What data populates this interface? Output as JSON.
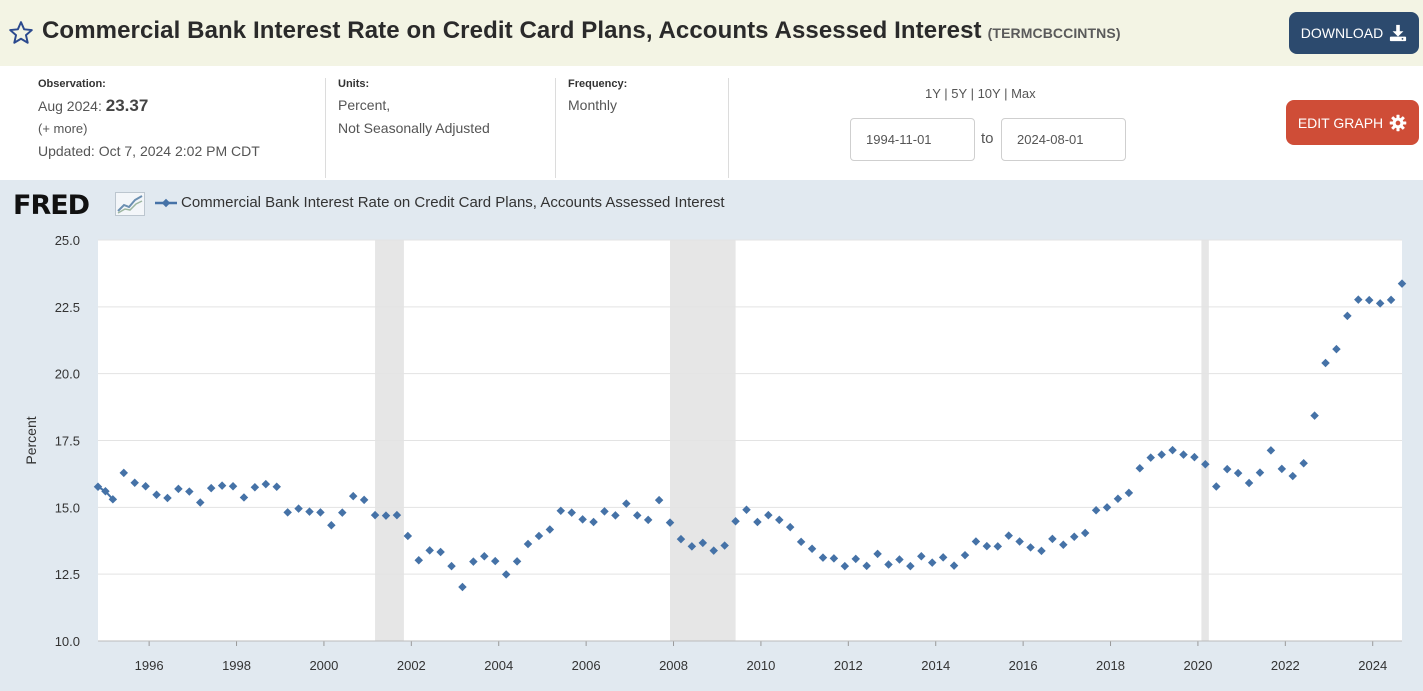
{
  "header": {
    "title": "Commercial Bank Interest Rate on Credit Card Plans, Accounts Assessed Interest",
    "series_id": "(TERMCBCCINTNS)",
    "download_label": "DOWNLOAD"
  },
  "meta": {
    "observation_label": "Observation:",
    "observation_date": "Aug 2024:",
    "observation_value": "23.37",
    "more_link": "(+ more)",
    "updated_label": "Updated:",
    "updated_value": "Oct 7, 2024 2:02 PM CDT",
    "units_label": "Units:",
    "units_line1": "Percent,",
    "units_line2": "Not Seasonally Adjusted",
    "frequency_label": "Frequency:",
    "frequency_value": "Monthly"
  },
  "range": {
    "links": [
      "1Y",
      "5Y",
      "10Y",
      "Max"
    ],
    "separator": " | ",
    "start_date": "1994-11-01",
    "to_label": "to",
    "end_date": "2024-08-01"
  },
  "edit_label": "EDIT GRAPH",
  "colors": {
    "accent_series": "#4572a7",
    "recession_shade": "#e6e6e6",
    "download_bg": "#2c4a6e",
    "edit_bg": "#cf4d37",
    "title_bar_bg": "#f3f4e4",
    "chart_bg": "#e1e9f0"
  },
  "logo_text": "FRED",
  "chart_data": {
    "type": "scatter",
    "title": "Commercial Bank Interest Rate on Credit Card Plans, Accounts Assessed Interest",
    "ylabel": "Percent",
    "xlabel": "",
    "ylim": [
      10.0,
      25.0
    ],
    "xlim": [
      1994.83,
      2024.67
    ],
    "yticks": [
      "10.0",
      "12.5",
      "15.0",
      "17.5",
      "20.0",
      "22.5",
      "25.0"
    ],
    "xticks": [
      "1996",
      "1998",
      "2000",
      "2002",
      "2004",
      "2006",
      "2008",
      "2010",
      "2012",
      "2014",
      "2016",
      "2018",
      "2020",
      "2022",
      "2024"
    ],
    "grid": true,
    "legend_position": "top-left",
    "recessions": [
      [
        2001.17,
        2001.83
      ],
      [
        2007.92,
        2009.42
      ],
      [
        2020.08,
        2020.25
      ]
    ],
    "series": [
      {
        "name": "Commercial Bank Interest Rate on Credit Card Plans, Accounts Assessed Interest",
        "points": [
          [
            1994.83,
            15.77
          ],
          [
            1995.0,
            15.6
          ],
          [
            1995.17,
            15.3
          ],
          [
            1995.42,
            16.29
          ],
          [
            1995.67,
            15.92
          ],
          [
            1995.92,
            15.79
          ],
          [
            1996.17,
            15.47
          ],
          [
            1996.42,
            15.35
          ],
          [
            1996.67,
            15.69
          ],
          [
            1996.92,
            15.59
          ],
          [
            1997.17,
            15.18
          ],
          [
            1997.42,
            15.72
          ],
          [
            1997.67,
            15.81
          ],
          [
            1997.92,
            15.79
          ],
          [
            1998.17,
            15.37
          ],
          [
            1998.42,
            15.75
          ],
          [
            1998.67,
            15.87
          ],
          [
            1998.92,
            15.77
          ],
          [
            1999.17,
            14.81
          ],
          [
            1999.42,
            14.95
          ],
          [
            1999.67,
            14.84
          ],
          [
            1999.92,
            14.81
          ],
          [
            2000.17,
            14.33
          ],
          [
            2000.42,
            14.8
          ],
          [
            2000.67,
            15.42
          ],
          [
            2000.92,
            15.28
          ],
          [
            2001.17,
            14.71
          ],
          [
            2001.42,
            14.69
          ],
          [
            2001.67,
            14.71
          ],
          [
            2001.92,
            13.93
          ],
          [
            2002.17,
            13.02
          ],
          [
            2002.42,
            13.39
          ],
          [
            2002.67,
            13.33
          ],
          [
            2002.92,
            12.8
          ],
          [
            2003.17,
            12.02
          ],
          [
            2003.42,
            12.97
          ],
          [
            2003.67,
            13.17
          ],
          [
            2003.92,
            12.99
          ],
          [
            2004.17,
            12.49
          ],
          [
            2004.42,
            12.98
          ],
          [
            2004.67,
            13.63
          ],
          [
            2004.92,
            13.93
          ],
          [
            2005.17,
            14.17
          ],
          [
            2005.42,
            14.87
          ],
          [
            2005.67,
            14.8
          ],
          [
            2005.92,
            14.55
          ],
          [
            2006.17,
            14.45
          ],
          [
            2006.42,
            14.85
          ],
          [
            2006.67,
            14.7
          ],
          [
            2006.92,
            15.14
          ],
          [
            2007.17,
            14.7
          ],
          [
            2007.42,
            14.53
          ],
          [
            2007.67,
            15.27
          ],
          [
            2007.92,
            14.43
          ],
          [
            2008.17,
            13.81
          ],
          [
            2008.42,
            13.54
          ],
          [
            2008.67,
            13.67
          ],
          [
            2008.92,
            13.38
          ],
          [
            2009.17,
            13.57
          ],
          [
            2009.42,
            14.48
          ],
          [
            2009.67,
            14.91
          ],
          [
            2009.92,
            14.45
          ],
          [
            2010.17,
            14.71
          ],
          [
            2010.42,
            14.53
          ],
          [
            2010.67,
            14.26
          ],
          [
            2010.92,
            13.71
          ],
          [
            2011.17,
            13.45
          ],
          [
            2011.42,
            13.12
          ],
          [
            2011.67,
            13.09
          ],
          [
            2011.92,
            12.8
          ],
          [
            2012.17,
            13.07
          ],
          [
            2012.42,
            12.81
          ],
          [
            2012.67,
            13.26
          ],
          [
            2012.92,
            12.86
          ],
          [
            2013.17,
            13.05
          ],
          [
            2013.42,
            12.8
          ],
          [
            2013.67,
            13.17
          ],
          [
            2013.92,
            12.93
          ],
          [
            2014.17,
            13.13
          ],
          [
            2014.42,
            12.82
          ],
          [
            2014.67,
            13.21
          ],
          [
            2014.92,
            13.72
          ],
          [
            2015.17,
            13.55
          ],
          [
            2015.42,
            13.54
          ],
          [
            2015.67,
            13.94
          ],
          [
            2015.92,
            13.72
          ],
          [
            2016.17,
            13.5
          ],
          [
            2016.42,
            13.37
          ],
          [
            2016.67,
            13.82
          ],
          [
            2016.92,
            13.6
          ],
          [
            2017.17,
            13.9
          ],
          [
            2017.42,
            14.04
          ],
          [
            2017.67,
            14.89
          ],
          [
            2017.92,
            15.0
          ],
          [
            2018.17,
            15.32
          ],
          [
            2018.42,
            15.54
          ],
          [
            2018.67,
            16.46
          ],
          [
            2018.92,
            16.86
          ],
          [
            2019.17,
            16.97
          ],
          [
            2019.42,
            17.14
          ],
          [
            2019.67,
            16.97
          ],
          [
            2019.92,
            16.88
          ],
          [
            2020.17,
            16.61
          ],
          [
            2020.42,
            15.78
          ],
          [
            2020.67,
            16.43
          ],
          [
            2020.92,
            16.28
          ],
          [
            2021.17,
            15.91
          ],
          [
            2021.42,
            16.3
          ],
          [
            2021.67,
            17.13
          ],
          [
            2021.92,
            16.44
          ],
          [
            2022.17,
            16.17
          ],
          [
            2022.42,
            16.65
          ],
          [
            2022.67,
            18.43
          ],
          [
            2022.92,
            20.4
          ],
          [
            2023.17,
            20.92
          ],
          [
            2023.42,
            22.16
          ],
          [
            2023.67,
            22.77
          ],
          [
            2023.92,
            22.75
          ],
          [
            2024.17,
            22.63
          ],
          [
            2024.42,
            22.76
          ],
          [
            2024.67,
            23.37
          ]
        ]
      }
    ]
  }
}
